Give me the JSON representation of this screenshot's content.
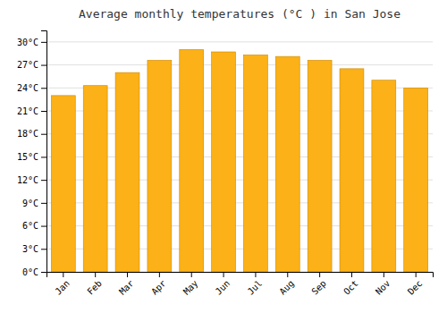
{
  "chart_data": {
    "type": "bar",
    "title": "Average monthly temperatures (°C ) in San Jose",
    "categories": [
      "Jan",
      "Feb",
      "Mar",
      "Apr",
      "May",
      "Jun",
      "Jul",
      "Aug",
      "Sep",
      "Oct",
      "Nov",
      "Dec"
    ],
    "values": [
      23.0,
      24.3,
      26.0,
      27.6,
      29.0,
      28.7,
      28.3,
      28.1,
      27.6,
      26.5,
      25.0,
      24.0
    ],
    "color": "#FBB117",
    "ylim": [
      0,
      31.5
    ],
    "yticks": [
      {
        "value": 0,
        "label": "0°C"
      },
      {
        "value": 3,
        "label": "3°C"
      },
      {
        "value": 6,
        "label": "6°C"
      },
      {
        "value": 9,
        "label": "9°C"
      },
      {
        "value": 12,
        "label": "12°C"
      },
      {
        "value": 15,
        "label": "15°C"
      },
      {
        "value": 18,
        "label": "18°C"
      },
      {
        "value": 21,
        "label": "21°C"
      },
      {
        "value": 24,
        "label": "24°C"
      },
      {
        "value": 27,
        "label": "27°C"
      },
      {
        "value": 30,
        "label": "30°C"
      }
    ],
    "grid": true
  }
}
